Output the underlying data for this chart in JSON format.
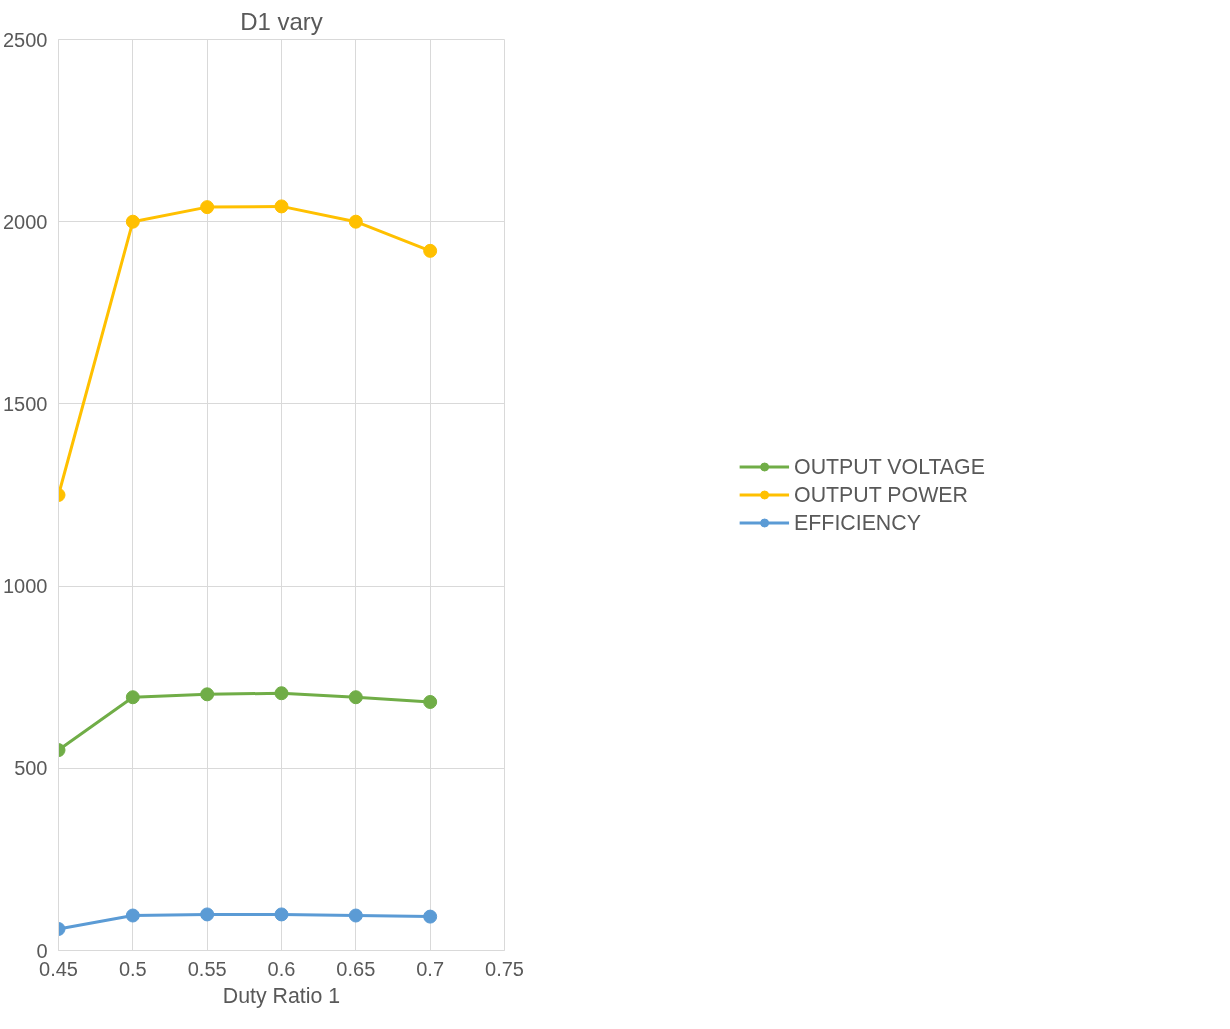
{
  "chart_data": {
    "type": "line",
    "title": "D1 vary",
    "xlabel": "Duty Ratio 1",
    "x": [
      0.45,
      0.5,
      0.55,
      0.6,
      0.65,
      0.7
    ],
    "series": [
      {
        "name": "OUTPUT VOLTAGE",
        "color": "#70ad47",
        "values": [
          550,
          695,
          703,
          706,
          695,
          682
        ]
      },
      {
        "name": "OUTPUT POWER",
        "color": "#ffc000",
        "values": [
          1250,
          2000,
          2040,
          2042,
          2000,
          1920
        ]
      },
      {
        "name": "EFFICIENCY",
        "color": "#5b9bd5",
        "values": [
          59,
          96,
          99,
          99,
          96,
          93
        ]
      }
    ],
    "xlim": [
      0.45,
      0.75
    ],
    "xticks": [
      0.45,
      0.5,
      0.55,
      0.6,
      0.65,
      0.7,
      0.75
    ],
    "ylim": [
      0,
      2500
    ],
    "yticks": [
      0,
      500,
      1000,
      1500,
      2000,
      2500
    ],
    "grid": true,
    "legend": "right",
    "marker": "circle",
    "line_style": "solid"
  }
}
